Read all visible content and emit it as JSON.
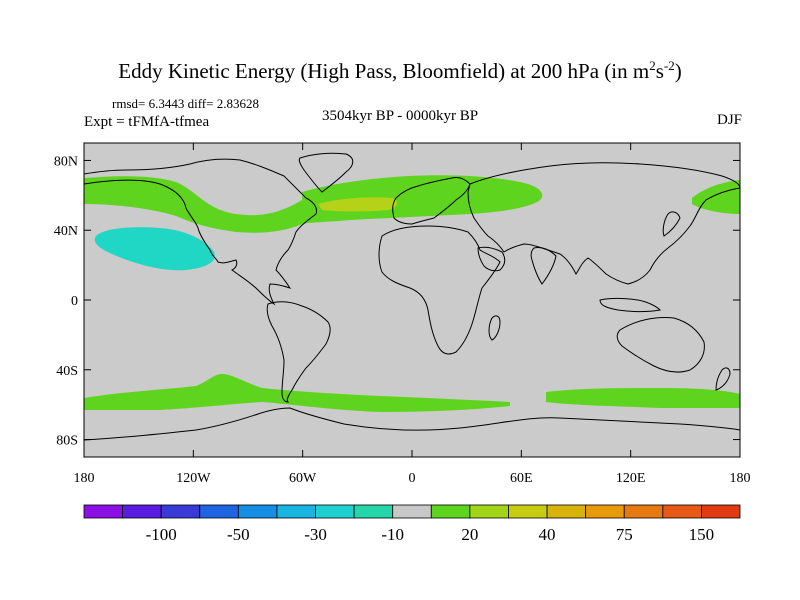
{
  "title": {
    "main": "Eddy Kinetic Energy (High Pass, Bloomfield) at 200 hPa (in m",
    "sup1": "2",
    "mid": "s",
    "sup2": "-2",
    "end": ")"
  },
  "stats": "rmsd= 6.3443 diff= 2.83628",
  "experiment": "Expt = tFMfA-tfmea",
  "period": "3504kyr BP - 0000kyr BP",
  "season": "DJF",
  "map": {
    "lat_ticks": [
      {
        "lat": 80,
        "label": "80N"
      },
      {
        "lat": 40,
        "label": "40N"
      },
      {
        "lat": 0,
        "label": "0"
      },
      {
        "lat": -40,
        "label": "40S"
      },
      {
        "lat": -80,
        "label": "80S"
      }
    ],
    "lon_ticks": [
      {
        "lon": -180,
        "label": "180"
      },
      {
        "lon": -120,
        "label": "120W"
      },
      {
        "lon": -60,
        "label": "60W"
      },
      {
        "lon": 0,
        "label": "0"
      },
      {
        "lon": 60,
        "label": "60E"
      },
      {
        "lon": 120,
        "label": "120E"
      },
      {
        "lon": 180,
        "label": "180"
      }
    ],
    "lat_range": [
      -90,
      90
    ],
    "lon_range": [
      -180,
      180
    ],
    "colors": {
      "background": "#cbcbcb",
      "coast": "#000000",
      "positive": "#5fd41f",
      "strong": "#b5d219",
      "negative": "#20d6c4",
      "strong_negative": "#22c9d6"
    }
  },
  "colorbar": {
    "colors": [
      "#8b10e6",
      "#5a1ce0",
      "#3a3ad6",
      "#1f64e0",
      "#158fe6",
      "#18b4e2",
      "#1fd0d0",
      "#24d6a8",
      "#c8c8c8",
      "#5fd41f",
      "#a2d418",
      "#c8cc10",
      "#d8b40a",
      "#e89a0a",
      "#e67a10",
      "#e65a16",
      "#e23a12"
    ],
    "labels": [
      {
        "boundary": 2,
        "text": "-100"
      },
      {
        "boundary": 4,
        "text": "-50"
      },
      {
        "boundary": 6,
        "text": "-30"
      },
      {
        "boundary": 8,
        "text": "-10"
      },
      {
        "boundary": 10,
        "text": "20"
      },
      {
        "boundary": 12,
        "text": "40"
      },
      {
        "boundary": 14,
        "text": "75"
      },
      {
        "boundary": 16,
        "text": "150"
      }
    ]
  }
}
